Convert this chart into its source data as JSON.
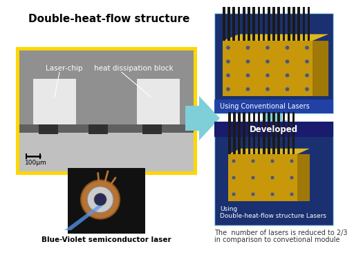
{
  "title": "Double-heat-flow structure",
  "bg_color": "#ffffff",
  "left_photo_border_color": "#FFD700",
  "left_photo_label1": "Laser-chip",
  "left_photo_label2": "heat dissipation block",
  "left_photo_scale": "100μm",
  "bottom_left_label": "Blue-Violet semiconductor laser",
  "top_right_caption": "Using Conventional Lasers",
  "bottom_right_caption1": "Using",
  "bottom_right_caption2": "Double-heat-flow structure Lasers",
  "bottom_right_badge": "Developed",
  "final_text_line1": "The  number of lasers is reduced to 2/3",
  "final_text_line2": "in comparison to convetional module",
  "top_right_bg": "#1a3070",
  "bottom_right_bg": "#1a3070",
  "arrow_color_big": "#7ecfd8",
  "arrow_color_yellow": "#FFD700",
  "caption_text_color": "#ffffff",
  "badge_text_color": "#ffffff",
  "sem_bg_upper": "#909090",
  "sem_bg_lower": "#c0c0c0",
  "chip_color": "#e8e8e8",
  "substrate_color": "#606060"
}
